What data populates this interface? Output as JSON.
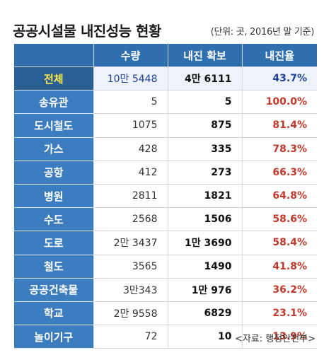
{
  "title": "공공시설물 내진성능 현황",
  "unit": "(단위: 곳, 2016년 말 기준)",
  "columns": [
    "",
    "수량",
    "내진 확보",
    "내진율"
  ],
  "rows": [
    {
      "name": "전체",
      "qty": "10만 5448",
      "secured": "4만 6111",
      "rate": "43.7%"
    },
    {
      "name": "송유관",
      "qty": "5",
      "secured": "5",
      "rate": "100.0%"
    },
    {
      "name": "도시철도",
      "qty": "1075",
      "secured": "875",
      "rate": "81.4%"
    },
    {
      "name": "가스",
      "qty": "428",
      "secured": "335",
      "rate": "78.3%"
    },
    {
      "name": "공항",
      "qty": "412",
      "secured": "273",
      "rate": "66.3%"
    },
    {
      "name": "병원",
      "qty": "2811",
      "secured": "1821",
      "rate": "64.8%"
    },
    {
      "name": "수도",
      "qty": "2568",
      "secured": "1506",
      "rate": "58.6%"
    },
    {
      "name": "도로",
      "qty": "2만 3437",
      "secured": "1만 3690",
      "rate": "58.4%"
    },
    {
      "name": "철도",
      "qty": "3565",
      "secured": "1490",
      "rate": "41.8%"
    },
    {
      "name": "공공건축물",
      "qty": "3만343",
      "secured": "1만 976",
      "rate": "36.2%"
    },
    {
      "name": "학교",
      "qty": "2만 9558",
      "secured": "6829",
      "rate": "23.1%"
    },
    {
      "name": "놀이기구",
      "qty": "72",
      "secured": "10",
      "rate": "13.9%"
    }
  ],
  "source": "<자료: 행정안전부>",
  "colors": {
    "header": "#2f6fae",
    "row_label": "#3b7dbf",
    "total_label_text": "#ffe84a",
    "rate": "#c0392b",
    "total_value": "#1f3f9a"
  }
}
